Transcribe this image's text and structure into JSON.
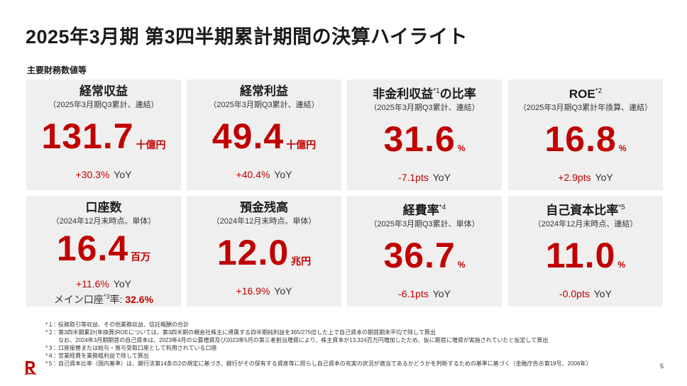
{
  "title": "2025年3月期 第3四半期累計期間の決算ハイライト",
  "section_label": "主要財務数値等",
  "cards": [
    {
      "title": "経常収益",
      "sup": "",
      "subtitle": "（2025年3月期Q3累計、連結）",
      "value": "131.7",
      "unit": "十億円",
      "change": "+30.3%",
      "change_suffix": "YoY"
    },
    {
      "title": "経常利益",
      "sup": "",
      "subtitle": "（2025年3月期Q3累計、連結）",
      "value": "49.4",
      "unit": "十億円",
      "change": "+40.4%",
      "change_suffix": "YoY"
    },
    {
      "title": "非金利収益",
      "sup": "*1",
      "title_tail": "の比率",
      "subtitle": "（2025年3月期Q3累計、連結）",
      "value": "31.6",
      "unit": "%",
      "change": "-7.1pts",
      "change_suffix": "YoY"
    },
    {
      "title": "ROE",
      "sup": "*2",
      "subtitle": "（2025年3月期Q3累計年換算、連結）",
      "value": "16.8",
      "unit": "%",
      "change": "+2.9pts",
      "change_suffix": "YoY"
    },
    {
      "title": "口座数",
      "sup": "",
      "subtitle": "（2024年12月末時点、単体）",
      "value": "16.4",
      "unit": "百万",
      "change": "+11.6%",
      "change_suffix": "YoY",
      "extra_label": "メイン口座",
      "extra_sup": "*3",
      "extra_tail": "率:",
      "extra_value": "32.6%"
    },
    {
      "title": "預金残高",
      "sup": "",
      "subtitle": "（2024年12月末時点、単体）",
      "value": "12.0",
      "unit": "兆円",
      "change": "+16.9%",
      "change_suffix": "YoY"
    },
    {
      "title": "経費率",
      "sup": "*4",
      "subtitle": "（2025年3月期Q3累計、単体）",
      "value": "36.7",
      "unit": "%",
      "change": "-6.1pts",
      "change_suffix": "YoY"
    },
    {
      "title": "自己資本比率",
      "sup": "*5",
      "subtitle": "（2024年12月末時点、連結）",
      "value": "11.0",
      "unit": "%",
      "change": "-0.0pts",
      "change_suffix": "YoY"
    }
  ],
  "footnotes": [
    {
      "mark": "*１：",
      "text": "役務取引等収益、その他業務収益、信託報酬の合計"
    },
    {
      "mark": "*２：",
      "text": "第3四半期累計(年換算)ROEについては、第3四半期の親会社株主に帰属する四半期純利益を365/275倍した上で自己資本の期首期末平均で除して算出"
    },
    {
      "mark": "",
      "text": "なお、2024年3月期期首の自己資本は、2023年4月の公募増資及び2023年5月の第三者割当増資により、株主資本が13,324百万円増加したため、仮に期首に増資が実施されていたと仮定して算出"
    },
    {
      "mark": "*３：",
      "text": "口座振替または給与・賞与受取口座として利用されている口座"
    },
    {
      "mark": "*４：",
      "text": "営業経費を業務粗利益で除して算出"
    },
    {
      "mark": "*５：",
      "text": "自己資本比率（国内基準）は、銀行法第14条の2の規定に基づき、銀行がその保有する資産等に照らし自己資本の充実の状況が適当であるかどうかを判断するための基準に基づく（金融庁告示第19号、2006年）"
    }
  ],
  "page_number": "5",
  "colors": {
    "accent": "#c00000",
    "card_bg": "#efefef"
  },
  "logo_icon": "rakuten-r-logo"
}
